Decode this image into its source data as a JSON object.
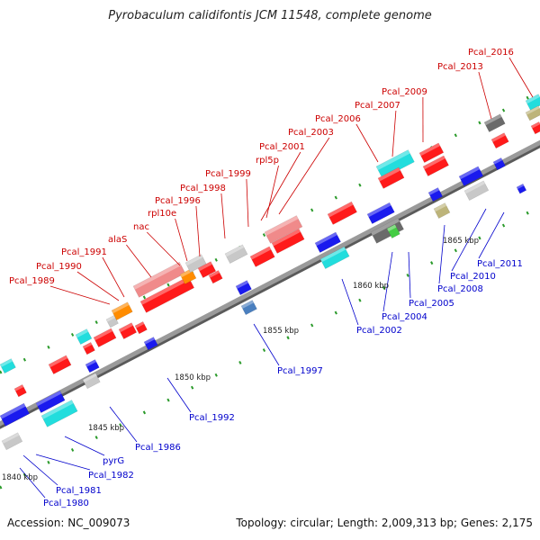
{
  "title": "Pyrobaculum calidifontis JCM 11548, complete genome",
  "accession": "Accession: NC_009073",
  "summary": "Topology: circular; Length: 2,009,313 bp; Genes: 2,175",
  "colors": {
    "backbone": "#8c8c8c",
    "tick": "#2a9a2a",
    "label_top": "#cc0000",
    "label_bottom": "#0000cc",
    "red": "#ff1a1a",
    "pink": "#f08a8a",
    "orange": "#ff8c00",
    "grey": "#c8c8c8",
    "dark": "#6a6a6a",
    "blue": "#1a1aee",
    "cyan": "#22dddd",
    "steel": "#4a7fbf",
    "olive": "#bdb47a",
    "green": "#44cc44"
  },
  "kbp_labels": [
    "1840 kbp",
    "1845 kbp",
    "1850 kbp",
    "1855 kbp",
    "1860 kbp",
    "1865 kbp"
  ],
  "top_labels": [
    "Pcal_1989",
    "Pcal_1990",
    "Pcal_1991",
    "alaS",
    "nac",
    "rpl10e",
    "Pcal_1996",
    "Pcal_1998",
    "Pcal_1999",
    "Pcal_2001",
    "rpl5p",
    "Pcal_2003",
    "Pcal_2006",
    "Pcal_2007",
    "Pcal_2009",
    "Pcal_2013",
    "Pcal_2016"
  ],
  "bottom_labels": [
    "Pcal_1980",
    "Pcal_1981",
    "Pcal_1982",
    "pyrG",
    "Pcal_1986",
    "Pcal_1992",
    "Pcal_1997",
    "Pcal_2002",
    "Pcal_2004",
    "Pcal_2005",
    "Pcal_2008",
    "Pcal_2010",
    "Pcal_2011"
  ]
}
